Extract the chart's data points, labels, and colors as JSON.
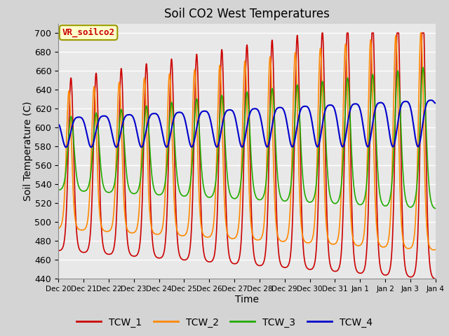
{
  "title": "Soil CO2 West Temperatures",
  "xlabel": "Time",
  "ylabel": "Soil Temperature (C)",
  "ylim": [
    440,
    710
  ],
  "yticks": [
    440,
    460,
    480,
    500,
    520,
    540,
    560,
    580,
    600,
    620,
    640,
    660,
    680,
    700
  ],
  "series_colors": [
    "#cc0000",
    "#ff8800",
    "#22aa00",
    "#0000cc"
  ],
  "series_names": [
    "TCW_1",
    "TCW_2",
    "TCW_3",
    "TCW_4"
  ],
  "vr_label": "VR_soilco2",
  "vr_label_color": "#cc0000",
  "vr_box_color": "#ffffcc",
  "vr_box_edge": "#999900",
  "fig_bg": "#d4d4d4",
  "ax_bg": "#e8e8e8",
  "n_points": 2000
}
